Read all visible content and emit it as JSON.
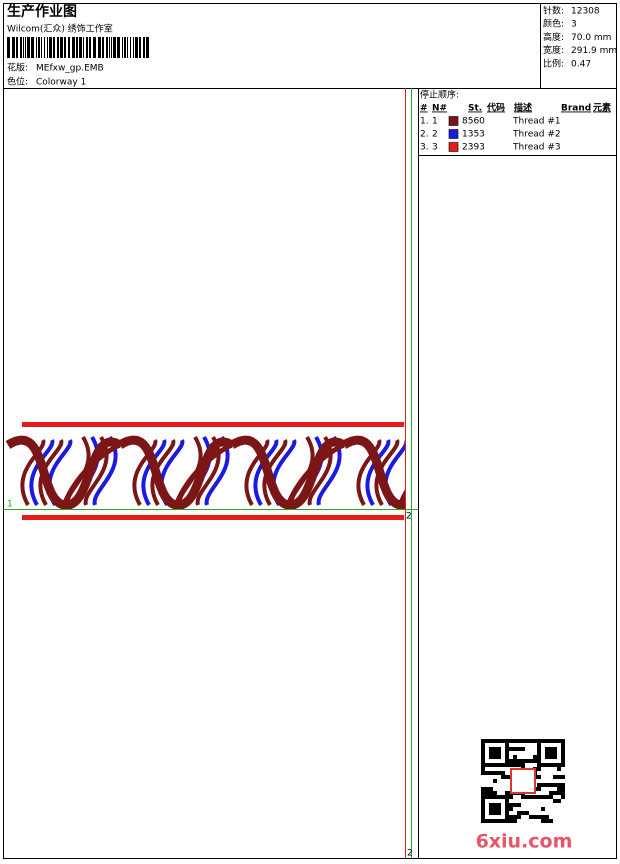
{
  "header": {
    "title": "生产作业图",
    "studio": "Wilcom(汇众) 绣饰工作室",
    "design_label": "花版:",
    "design": "MEfxw_gp.EMB",
    "colorway_label": "色位:",
    "colorway": "Colorway 1"
  },
  "stats": [
    {
      "label": "针数:",
      "value": "12308"
    },
    {
      "label": "颜色:",
      "value": "3"
    },
    {
      "label": "高度:",
      "value": "70.0 mm"
    },
    {
      "label": "宽度:",
      "value": "291.9 mm"
    },
    {
      "label": "比例:",
      "value": "0.47"
    }
  ],
  "table": {
    "title": "停止顺序:",
    "columns": [
      "#",
      "N#",
      "St.",
      "代码",
      "描述",
      "Brand",
      "元素"
    ],
    "rows": [
      {
        "stop": "1.",
        "needle": "1",
        "color": "#7b1616",
        "code": "8560",
        "description": "Thread #1"
      },
      {
        "stop": "2.",
        "needle": "2",
        "color": "#1a1ae0",
        "code": "1353",
        "description": "Thread #2"
      },
      {
        "stop": "3.",
        "needle": "3",
        "color": "#e41c1c",
        "code": "2393",
        "description": "Thread #3"
      }
    ]
  },
  "markers": [
    "1",
    "2",
    "2"
  ],
  "watermark": "6xiu.com"
}
